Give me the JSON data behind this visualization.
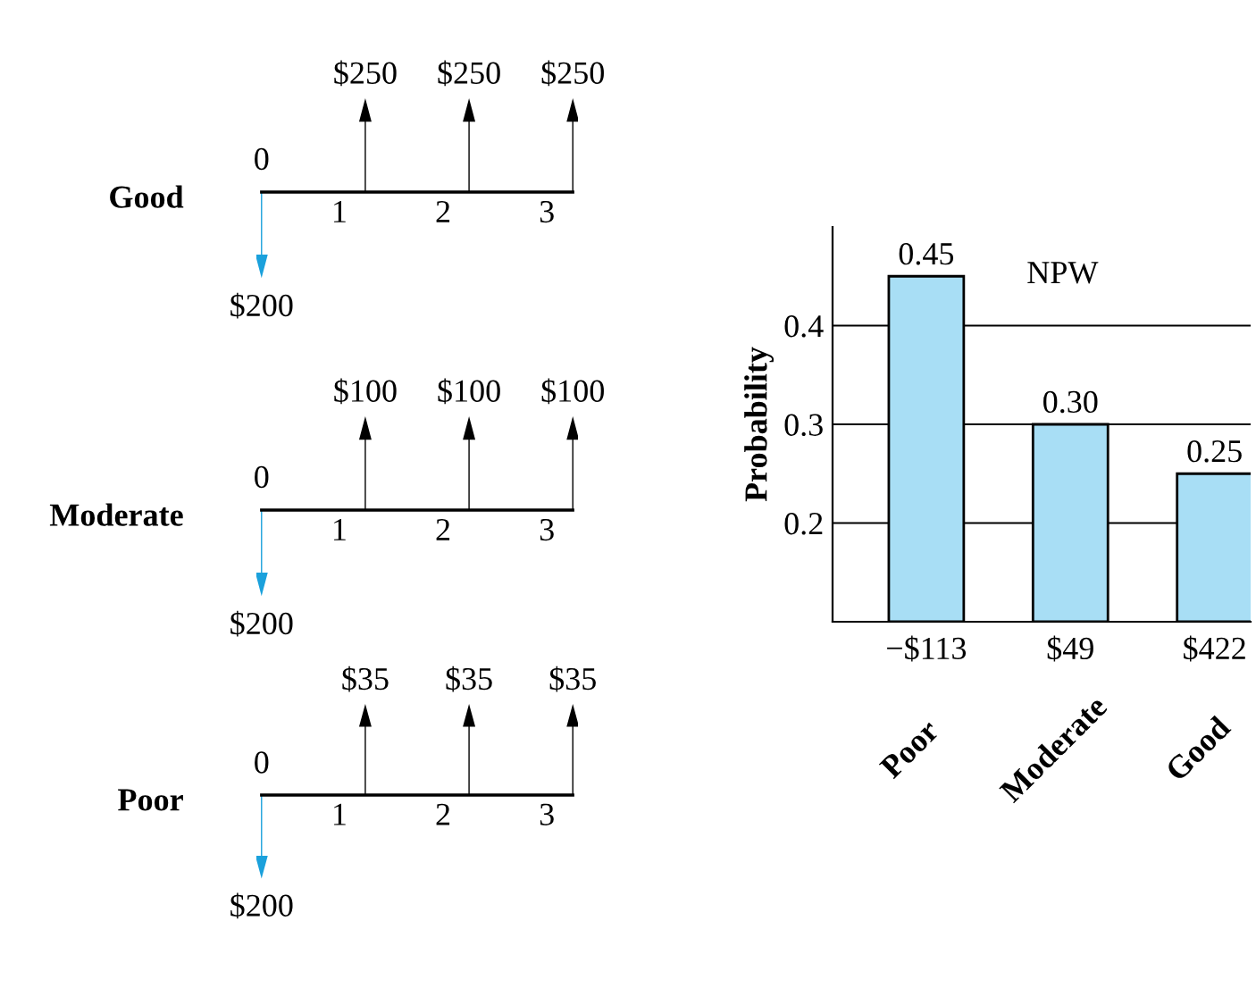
{
  "chart_data": [
    {
      "type": "other",
      "ylabel": "Good",
      "categories": [
        "0",
        "1",
        "2",
        "3"
      ],
      "annotations": [
        "$200",
        "$250",
        "$250",
        "$250"
      ]
    },
    {
      "type": "other",
      "ylabel": "Moderate",
      "categories": [
        "0",
        "1",
        "2",
        "3"
      ],
      "annotations": [
        "$200",
        "$100",
        "$100",
        "$100"
      ]
    },
    {
      "type": "other",
      "ylabel": "Poor",
      "categories": [
        "0",
        "1",
        "2",
        "3"
      ],
      "annotations": [
        "$200",
        "$35",
        "$35",
        "$35"
      ]
    },
    {
      "type": "bar",
      "title": "NPW",
      "ylabel": "Probability",
      "categories": [
        "−$113",
        "$49",
        "$422"
      ],
      "values": [
        0.45,
        0.3,
        0.25
      ],
      "value_labels": [
        "0.45",
        "0.30",
        "0.25"
      ],
      "color": "#a8def5",
      "ylim": [
        0.1,
        0.5
      ],
      "yticks": [
        0.2,
        0.3,
        0.4
      ],
      "grid": "y",
      "annotations": [
        "Poor",
        "Moderate",
        "Good"
      ]
    }
  ]
}
